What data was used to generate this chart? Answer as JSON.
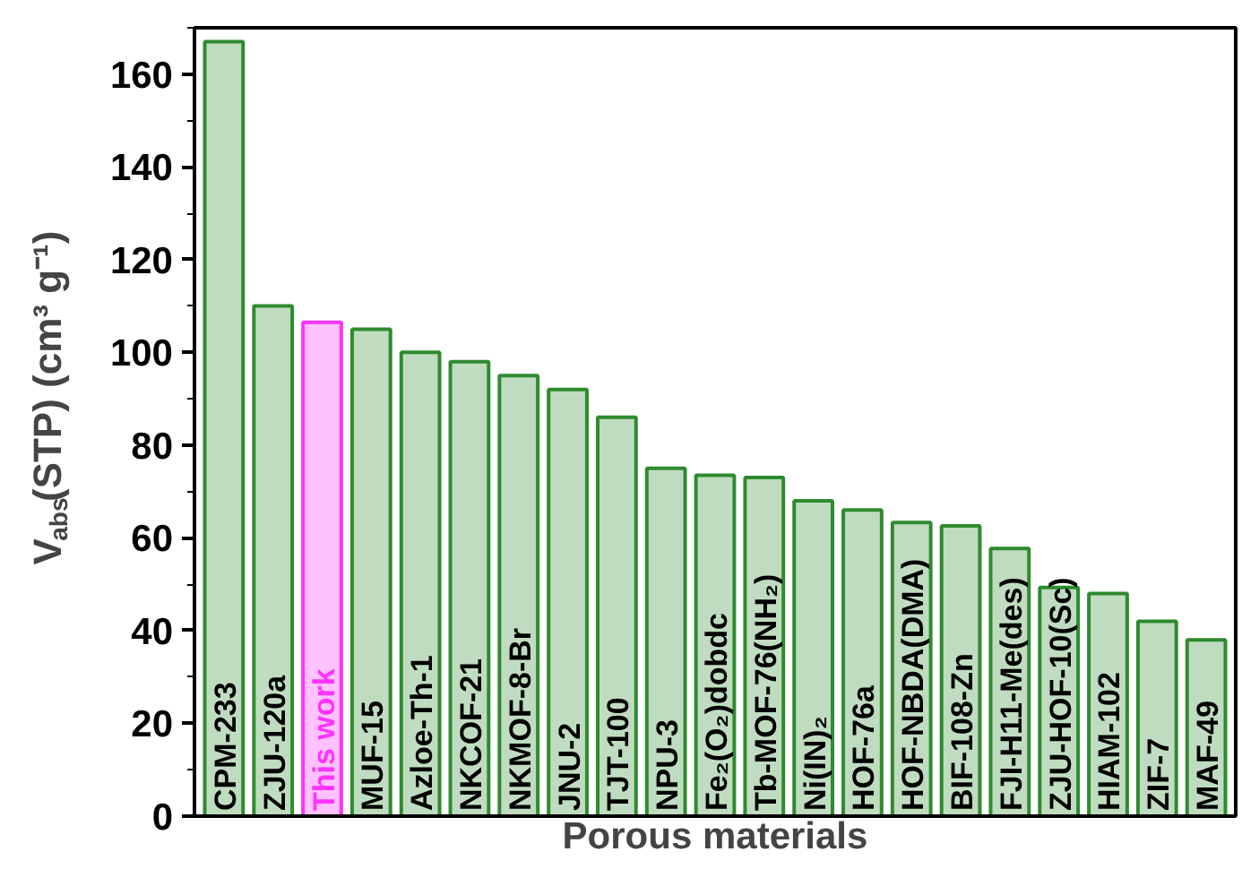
{
  "chart_data": {
    "type": "bar",
    "xlabel": "Porous materials",
    "ylabel": "V$_{abs}$(STP) (cm³ g⁻¹)",
    "categories": [
      "CPM-233",
      "ZJU-120a",
      "This work",
      "MUF-15",
      "Azloe-Th-1",
      "NKCOF-21",
      "NKMOF-8-Br",
      "JNU-2",
      "TJT-100",
      "NPU-3",
      "Fe₂(O₂)dobdc",
      "Tb-MOF-76(NH₂)",
      "Ni(IN)₂",
      "HOF-76a",
      "HOF-NBDA(DMA)",
      "BIF-108-Zn",
      "FJI-H11-Me(des)",
      "ZJU-HOF-10(Sc)",
      "HIAM-102",
      "ZIF-7",
      "MAF-49"
    ],
    "values": [
      167,
      110,
      106.5,
      105,
      100,
      98,
      95,
      92,
      86,
      75,
      73.5,
      73,
      68,
      66,
      63.3,
      62.6,
      57.7,
      49.3,
      48,
      42,
      38
    ],
    "color": "#2e8b2e",
    "colors": [
      "#2e8b2e",
      "#2e8b2e",
      "#ff33ff",
      "#2e8b2e",
      "#2e8b2e",
      "#2e8b2e",
      "#2e8b2e",
      "#2e8b2e",
      "#2e8b2e",
      "#2e8b2e",
      "#2e8b2e",
      "#2e8b2e",
      "#2e8b2e",
      "#2e8b2e",
      "#2e8b2e",
      "#2e8b2e",
      "#2e8b2e",
      "#2e8b2e",
      "#2e8b2e",
      "#2e8b2e",
      "#2e8b2e"
    ],
    "ylim": [
      0,
      170
    ],
    "yticks": [
      0,
      20,
      40,
      60,
      80,
      100,
      120,
      140,
      160
    ],
    "grid": false
  }
}
